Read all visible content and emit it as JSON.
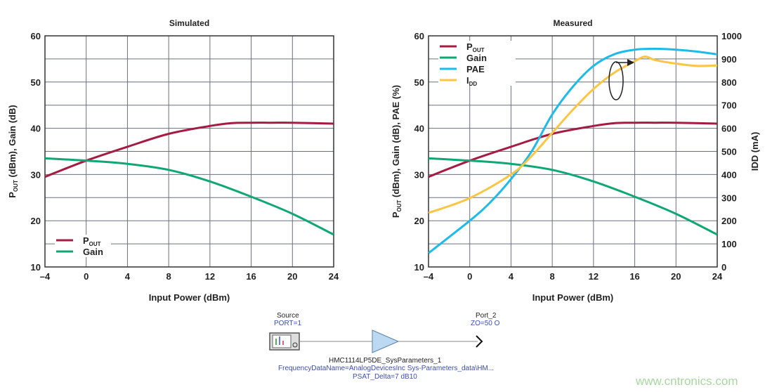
{
  "chart_data": [
    {
      "type": "line",
      "title": "Simulated",
      "xlabel": "Input Power (dBm)",
      "ylabel": "POUT (dBm), Gain (dB)",
      "xlim": [
        -4,
        24
      ],
      "ylim": [
        10,
        60
      ],
      "xticks": [
        "-4",
        "0",
        "4",
        "8",
        "12",
        "16",
        "20",
        "24"
      ],
      "yticks": [
        "10",
        "20",
        "30",
        "40",
        "50",
        "60"
      ],
      "grid": true,
      "legend": "bottom-left",
      "series": [
        {
          "name": "POUT",
          "color": "#a51c43",
          "x": [
            -4,
            0,
            4,
            8,
            12,
            14,
            16,
            18,
            20,
            24
          ],
          "values": [
            29.5,
            33,
            36,
            38.8,
            40.5,
            41.1,
            41.2,
            41.2,
            41.2,
            41.0
          ]
        },
        {
          "name": "Gain",
          "color": "#0fa774",
          "x": [
            -4,
            0,
            4,
            8,
            12,
            16,
            20,
            24
          ],
          "values": [
            33.5,
            33,
            32.3,
            31,
            28.5,
            25.2,
            21.5,
            17
          ]
        }
      ]
    },
    {
      "type": "line",
      "title": "Measured",
      "xlabel": "Input Power (dBm)",
      "ylabel": "POUT (dBm), Gain (dB), PAE (%)",
      "y2label": "IDD (mA)",
      "xlim": [
        -4,
        24
      ],
      "ylim": [
        10,
        60
      ],
      "y2lim": [
        0,
        1000
      ],
      "xticks": [
        "-4",
        "0",
        "4",
        "8",
        "12",
        "16",
        "20",
        "24"
      ],
      "yticks": [
        "10",
        "20",
        "30",
        "40",
        "50",
        "60"
      ],
      "y2ticks": [
        "0",
        "100",
        "200",
        "300",
        "400",
        "500",
        "600",
        "700",
        "800",
        "900",
        "1000"
      ],
      "grid": true,
      "legend": "top-left",
      "series": [
        {
          "name": "POUT",
          "color": "#a51c43",
          "axis": "left",
          "x": [
            -4,
            0,
            4,
            8,
            12,
            14,
            16,
            18,
            20,
            24
          ],
          "values": [
            29.5,
            33,
            36,
            38.8,
            40.5,
            41.1,
            41.2,
            41.2,
            41.2,
            41.0
          ]
        },
        {
          "name": "Gain",
          "color": "#0fa774",
          "axis": "left",
          "x": [
            -4,
            0,
            4,
            8,
            12,
            16,
            20,
            24
          ],
          "values": [
            33.5,
            33,
            32.3,
            31,
            28.5,
            25.2,
            21.5,
            17
          ]
        },
        {
          "name": "PAE",
          "color": "#1ebbea",
          "axis": "left",
          "x": [
            -4,
            0,
            2,
            4,
            6,
            8,
            10,
            12,
            14,
            16,
            18,
            20,
            22,
            24
          ],
          "values": [
            13,
            20,
            24,
            29,
            35,
            43,
            49,
            53.5,
            56,
            57,
            57.2,
            57,
            56.6,
            56
          ]
        },
        {
          "name": "IDD",
          "color": "#fdc544",
          "axis": "right",
          "x": [
            -4,
            0,
            4,
            6,
            8,
            10,
            12,
            14,
            16,
            17,
            18,
            20,
            22,
            24
          ],
          "values": [
            234,
            298,
            400,
            480,
            580,
            680,
            770,
            840,
            890,
            910,
            895,
            880,
            870,
            872
          ]
        }
      ]
    }
  ],
  "schematic": {
    "source_name": "Source",
    "source_param": "PORT=1",
    "port_name": "Port_2",
    "port_param": "ZO=50 O",
    "amp_name": "HMC1114LP5DE_SysParameters_1",
    "amp_param1": "FrequencyDataName=AnalogDevicesInc Sys-Parameters_data\\HM...",
    "amp_param2": "PSAT_Delta=7 dB10"
  },
  "watermark": "www.cntronics.com"
}
